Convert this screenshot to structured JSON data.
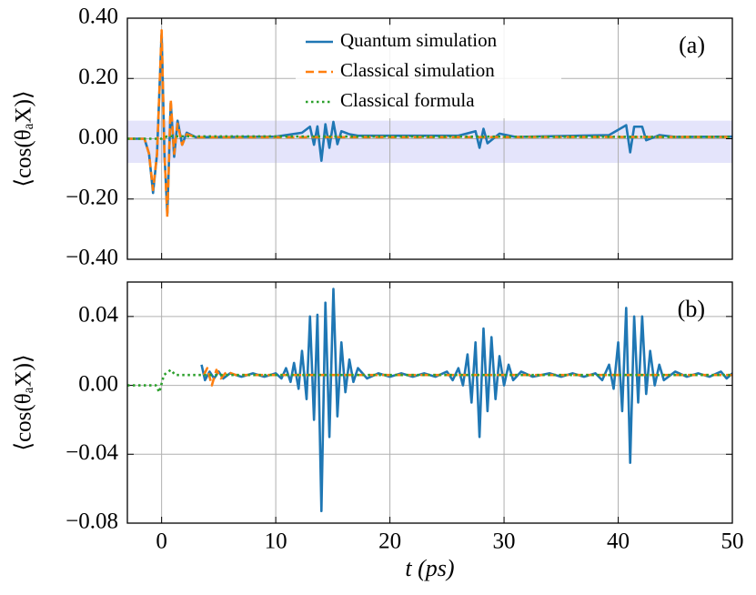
{
  "chart_data": [
    {
      "type": "line",
      "annotation": "(a)",
      "ylabel": "⟨cos(θₐX)⟩",
      "xlim": [
        -3,
        50
      ],
      "ylim": [
        -0.4,
        0.4
      ],
      "xticks": [
        0,
        10,
        20,
        30,
        40,
        50
      ],
      "xtick_labels": false,
      "yticks": [
        {
          "value": -0.4,
          "label": "−0.40"
        },
        {
          "value": -0.2,
          "label": "−0.20"
        },
        {
          "value": 0,
          "label": "0.00"
        },
        {
          "value": 0.2,
          "label": "0.20"
        },
        {
          "value": 0.4,
          "label": "0.40"
        }
      ],
      "grid": true,
      "highlight_band": [
        -0.08,
        0.06
      ],
      "highlight_color": "#e4e4fb",
      "legend": "upper center",
      "series": [
        {
          "name": "Quantum simulation",
          "color": "#1f77b4",
          "style": "solid",
          "x": [
            -3,
            -1.5,
            -1.1,
            -0.75,
            -0.4,
            -0.2,
            0,
            0.25,
            0.5,
            0.8,
            1.1,
            1.4,
            1.8,
            2.2,
            3,
            10,
            12.3,
            13.0,
            13.35,
            13.65,
            14.0,
            14.35,
            14.7,
            15.05,
            15.4,
            15.75,
            16.45,
            17.2,
            26,
            27.5,
            27.85,
            28.2,
            28.55,
            29.6,
            31,
            39.2,
            40.7,
            41.05,
            41.4,
            42.1,
            42.45,
            43.6,
            45,
            50
          ],
          "values": [
            0,
            0,
            -0.05,
            -0.18,
            -0.05,
            0.15,
            0.35,
            -0.05,
            -0.25,
            0.12,
            -0.06,
            0.06,
            -0.02,
            0.02,
            0.005,
            0.007,
            0.02,
            0.04,
            -0.02,
            0.041,
            -0.073,
            0.048,
            -0.03,
            0.056,
            -0.018,
            0.025,
            0.015,
            0.01,
            0.01,
            0.025,
            -0.03,
            0.033,
            -0.015,
            0.017,
            0.006,
            0.012,
            0.045,
            -0.045,
            0.04,
            0.04,
            -0.005,
            0.012,
            0.006,
            0.007
          ]
        },
        {
          "name": "Classical simulation",
          "color": "#ff7f0e",
          "style": "dashed",
          "x": [
            -3,
            -1.5,
            -1.1,
            -0.75,
            -0.4,
            -0.2,
            0,
            0.25,
            0.5,
            0.8,
            1.1,
            1.4,
            1.8,
            2.2,
            3,
            50
          ],
          "values": [
            0,
            0,
            -0.05,
            -0.17,
            -0.05,
            0.15,
            0.36,
            -0.05,
            -0.26,
            0.13,
            -0.05,
            0.05,
            -0.02,
            0.015,
            0.005,
            0.006
          ]
        },
        {
          "name": "Classical formula",
          "color": "#2ca02c",
          "style": "dotted",
          "x": [
            -3,
            0,
            0.5,
            50
          ],
          "values": [
            0,
            0,
            0.008,
            0.006
          ]
        }
      ]
    },
    {
      "type": "line",
      "annotation": "(b)",
      "ylabel": "⟨cos(θₐX)⟩",
      "xlabel": "t (ps)",
      "xlim": [
        -3,
        50
      ],
      "ylim": [
        -0.08,
        0.06
      ],
      "xticks": [
        0,
        10,
        20,
        30,
        40,
        50
      ],
      "xtick_labels": true,
      "yticks": [
        {
          "value": -0.08,
          "label": "−0.08"
        },
        {
          "value": -0.04,
          "label": "−0.04"
        },
        {
          "value": 0,
          "label": "0.00"
        },
        {
          "value": 0.04,
          "label": "0.04"
        }
      ],
      "grid": true,
      "series": [
        {
          "color": "#1f77b4",
          "style": "solid",
          "x": [
            3.5,
            3.8,
            4.2,
            4.6,
            5,
            5.4,
            6,
            7,
            8,
            9,
            10,
            10.5,
            10.9,
            11.3,
            11.6,
            12,
            12.3,
            12.7,
            13.0,
            13.35,
            13.65,
            14.0,
            14.35,
            14.7,
            15.05,
            15.4,
            15.75,
            16.1,
            16.45,
            16.8,
            17.2,
            18,
            19,
            20,
            21,
            22,
            23,
            24,
            25,
            25.5,
            26,
            26.4,
            26.8,
            27.15,
            27.5,
            27.85,
            28.2,
            28.55,
            28.9,
            29.25,
            29.6,
            30,
            30.4,
            30.8,
            31.5,
            32.5,
            34,
            35,
            36,
            37,
            38,
            38.6,
            39.2,
            39.6,
            40,
            40.35,
            40.7,
            41.05,
            41.4,
            41.75,
            42.1,
            42.45,
            42.8,
            43.2,
            43.6,
            44,
            45,
            46,
            47,
            48,
            49,
            49.5,
            50
          ],
          "values": [
            0.012,
            0.003,
            0.008,
            0.004,
            0.008,
            0.004,
            0.007,
            0.005,
            0.007,
            0.005,
            0.007,
            0.004,
            0.01,
            0.002,
            0.013,
            -0.002,
            0.02,
            -0.008,
            0.04,
            -0.02,
            0.041,
            -0.073,
            0.048,
            -0.03,
            0.056,
            -0.018,
            0.025,
            -0.004,
            0.015,
            0.002,
            0.01,
            0.004,
            0.007,
            0.005,
            0.007,
            0.005,
            0.007,
            0.005,
            0.008,
            0.003,
            0.01,
            0,
            0.018,
            -0.01,
            0.025,
            -0.03,
            0.033,
            -0.015,
            0.028,
            -0.008,
            0.017,
            0,
            0.012,
            0.003,
            0.008,
            0.005,
            0.007,
            0.005,
            0.007,
            0.005,
            0.007,
            0.003,
            0.012,
            -0.002,
            0.025,
            -0.015,
            0.045,
            -0.045,
            0.04,
            -0.01,
            0.04,
            -0.005,
            0.02,
            0,
            0.012,
            0.003,
            0.008,
            0.005,
            0.007,
            0.005,
            0.008,
            0.004,
            0.007
          ]
        },
        {
          "color": "#ff7f0e",
          "style": "dashed",
          "x": [
            3.7,
            4,
            4.4,
            4.8,
            5.2,
            5.7,
            6.5,
            50
          ],
          "values": [
            0.006,
            0.01,
            0,
            0.009,
            0.004,
            0.008,
            0.006,
            0.006
          ]
        },
        {
          "color": "#2ca02c",
          "style": "dotted",
          "x": [
            -3,
            -0.5,
            -0.2,
            0.2,
            0.8,
            1.2,
            50
          ],
          "values": [
            0,
            0,
            -0.004,
            0.006,
            0.009,
            0.006,
            0.006
          ]
        }
      ]
    }
  ]
}
